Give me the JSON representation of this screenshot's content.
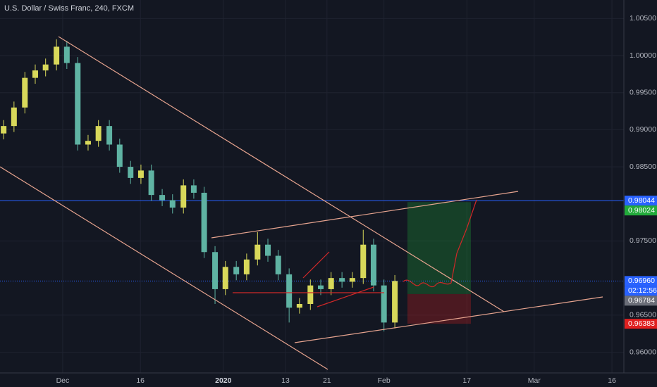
{
  "chart_data": {
    "type": "candlestick",
    "title": "U.S. Dollar / Swiss Franc, 240, FXCM",
    "up_color": "#d8d85a",
    "down_color": "#5fb3a3",
    "xlim": [
      -12.1,
      108.3
    ],
    "ylim": [
      0.9572,
      1.0075
    ],
    "xticks": [
      {
        "value": 0,
        "label": "Dec"
      },
      {
        "value": 15,
        "label": "16"
      },
      {
        "value": 31,
        "label": "2020"
      },
      {
        "value": 43,
        "label": "13"
      },
      {
        "value": 51,
        "label": "21"
      },
      {
        "value": 62,
        "label": "Feb"
      },
      {
        "value": 78,
        "label": "17"
      },
      {
        "value": 91,
        "label": "Mar"
      },
      {
        "value": 106,
        "label": "16"
      }
    ],
    "yticks": [
      {
        "value": 1.005,
        "label": "1.00500"
      },
      {
        "value": 1.0,
        "label": "1.00000"
      },
      {
        "value": 0.995,
        "label": "0.99500"
      },
      {
        "value": 0.99,
        "label": "0.99000"
      },
      {
        "value": 0.985,
        "label": "0.98500"
      },
      {
        "value": 0.975,
        "label": "0.97500"
      },
      {
        "value": 0.965,
        "label": "0.96500"
      },
      {
        "value": 0.96,
        "label": "0.96000"
      }
    ],
    "x": [
      -11.4,
      -9.4,
      -7.3,
      -5.3,
      -3.3,
      -1.2,
      0.8,
      2.9,
      4.9,
      6.9,
      9.0,
      11.0,
      13.1,
      15.1,
      17.1,
      19.2,
      21.2,
      23.3,
      25.3,
      27.3,
      29.4,
      31.4,
      33.5,
      35.5,
      37.6,
      39.6,
      41.6,
      43.7,
      45.7,
      47.8,
      49.8,
      51.8,
      53.9,
      55.9,
      58.0,
      60.0,
      62.0,
      64.1
    ],
    "open": [
      0.9895,
      0.9905,
      0.993,
      0.997,
      0.998,
      0.9988,
      1.0012,
      0.999,
      0.988,
      0.9885,
      0.9905,
      0.988,
      0.985,
      0.9835,
      0.9845,
      0.9812,
      0.9805,
      0.9795,
      0.9825,
      0.9815,
      0.9735,
      0.9685,
      0.9715,
      0.9705,
      0.9725,
      0.9745,
      0.973,
      0.9705,
      0.966,
      0.9665,
      0.969,
      0.9685,
      0.97,
      0.9695,
      0.97,
      0.9745,
      0.969,
      0.964
    ],
    "high": [
      0.9913,
      0.9938,
      0.9978,
      0.9988,
      0.9996,
      1.0022,
      1.002,
      0.9998,
      0.9893,
      0.9913,
      0.9913,
      0.9888,
      0.9858,
      0.9853,
      0.9853,
      0.982,
      0.9813,
      0.9833,
      0.9833,
      0.9823,
      0.9743,
      0.9723,
      0.9723,
      0.9733,
      0.9762,
      0.9753,
      0.9738,
      0.9713,
      0.9673,
      0.9698,
      0.9698,
      0.9708,
      0.9708,
      0.9708,
      0.9765,
      0.9753,
      0.9698,
      0.9704
    ],
    "low": [
      0.9887,
      0.9897,
      0.9922,
      0.9962,
      0.9972,
      0.998,
      0.9982,
      0.9872,
      0.9872,
      0.9877,
      0.9872,
      0.9842,
      0.9827,
      0.9827,
      0.9804,
      0.9797,
      0.9787,
      0.9787,
      0.9807,
      0.9727,
      0.9665,
      0.9677,
      0.9697,
      0.9697,
      0.9717,
      0.9722,
      0.9697,
      0.964,
      0.9652,
      0.9657,
      0.9677,
      0.9677,
      0.9687,
      0.9687,
      0.9692,
      0.9682,
      0.9628,
      0.9632
    ],
    "close": [
      0.9905,
      0.993,
      0.997,
      0.998,
      0.9988,
      1.0012,
      0.999,
      0.988,
      0.9885,
      0.9905,
      0.988,
      0.985,
      0.9835,
      0.9845,
      0.9812,
      0.9805,
      0.9795,
      0.9825,
      0.9815,
      0.9735,
      0.9685,
      0.9715,
      0.9705,
      0.9725,
      0.9745,
      0.973,
      0.9705,
      0.966,
      0.9665,
      0.969,
      0.9685,
      0.97,
      0.9695,
      0.97,
      0.9745,
      0.969,
      0.964,
      0.9696
    ],
    "price_tags": [
      {
        "value": 0.98044,
        "label": "0.98044",
        "color": "#2962ff"
      },
      {
        "value": 0.98024,
        "label": "0.98024",
        "color": "#22ab3b"
      },
      {
        "value": 0.9696,
        "label": "0.96960",
        "color": "#2962ff"
      },
      {
        "value": 0.96784,
        "label": "0.96784",
        "color": "#6b6e78"
      },
      {
        "value": 0.96383,
        "label": "0.96383",
        "color": "#e02020"
      }
    ],
    "countdown": "02:12:56",
    "horizontal_lines": [
      0.98044,
      0.9696
    ],
    "position": {
      "entry": 0.96784,
      "target": 0.98024,
      "stop": 0.96383
    }
  }
}
